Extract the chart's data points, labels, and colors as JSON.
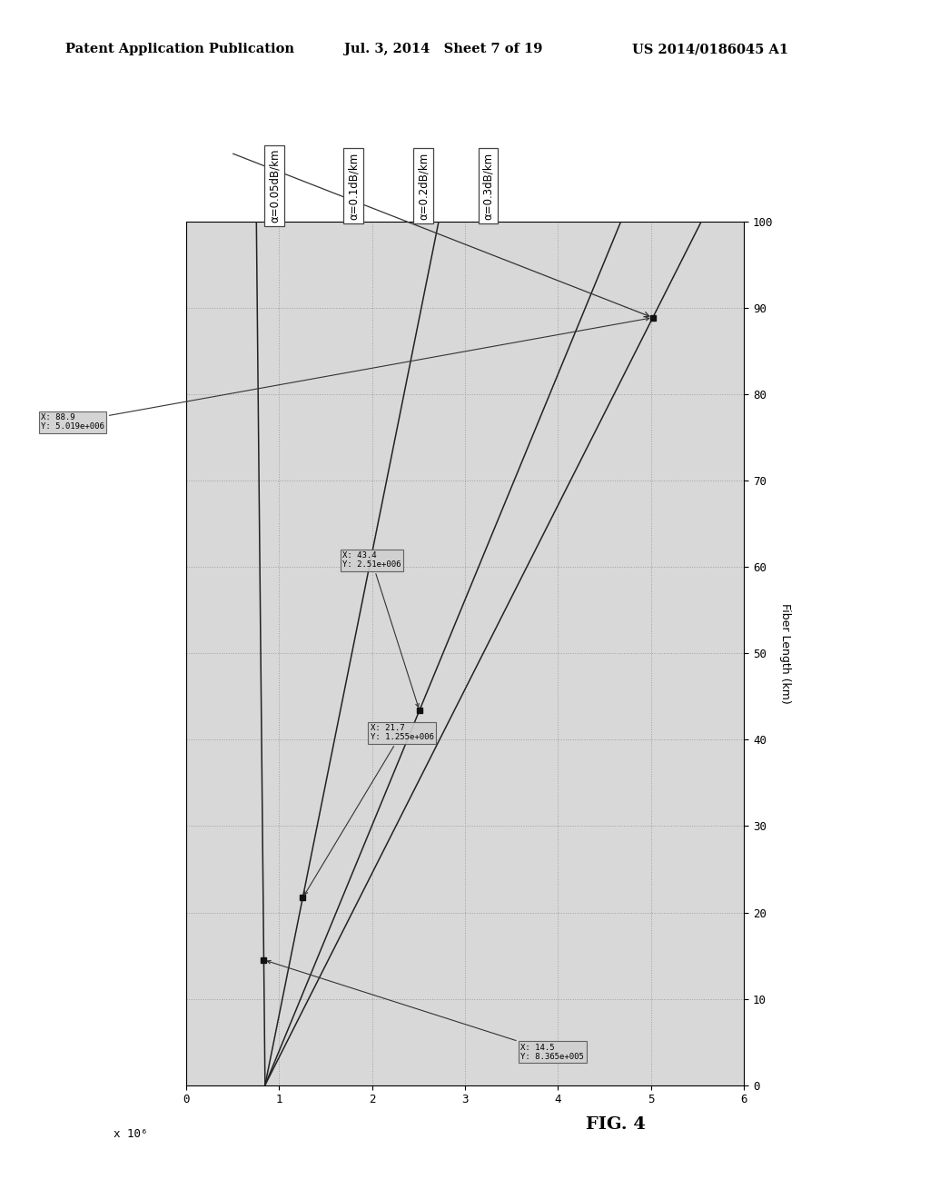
{
  "header_left": "Patent Application Publication",
  "header_mid": "Jul. 3, 2014   Sheet 7 of 19",
  "header_right": "US 2014/0186045 A1",
  "fig_label": "FIG. 4",
  "xaxis_multiplier_label": "x 10⁶",
  "ylabel": "Fiber Length (km)",
  "xlim": [
    0,
    6000000.0
  ],
  "ylim": [
    0,
    100
  ],
  "xticks": [
    0,
    1000000.0,
    2000000.0,
    3000000.0,
    4000000.0,
    5000000.0,
    6000000.0
  ],
  "xtick_labels": [
    "0",
    "1",
    "2",
    "3",
    "4",
    "5",
    "6"
  ],
  "yticks": [
    0,
    10,
    20,
    30,
    40,
    50,
    60,
    70,
    80,
    90,
    100
  ],
  "alpha_labels": [
    "α=0.05dB/km",
    "α=0.1dB/km",
    "α=0.2dB/km",
    "α=0.3dB/km"
  ],
  "annotations": [
    {
      "fiber": 88.9,
      "val": 5019000.0,
      "text": "X: 88.9\nY: 5.019e+006"
    },
    {
      "fiber": 43.4,
      "val": 2510000.0,
      "text": "X: 43.4\nY: 2.51e+006"
    },
    {
      "fiber": 21.7,
      "val": 1255000.0,
      "text": "X: 21.7\nY: 1.255e+006"
    },
    {
      "fiber": 14.5,
      "val": 836500.0,
      "text": "X: 14.5\nY: 8.365e+005"
    }
  ],
  "alphas_dB": [
    0.05,
    0.1,
    0.2,
    0.3
  ],
  "background_color": "#ffffff",
  "plot_bg": "#d8d8d8",
  "grid_color": "#999999"
}
